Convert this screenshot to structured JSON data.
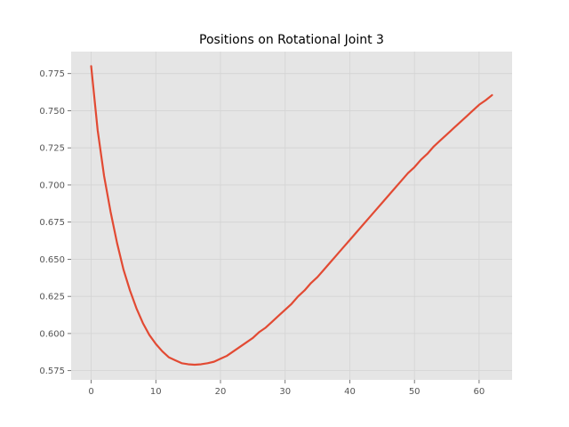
{
  "chart_data": {
    "type": "line",
    "title": "Positions on Rotational Joint 3",
    "xlabel": "",
    "ylabel": "",
    "xlim": [
      -3.1,
      65.1
    ],
    "ylim": [
      0.5688,
      0.7898
    ],
    "xticks": [
      0,
      10,
      20,
      30,
      40,
      50,
      60
    ],
    "yticks": [
      0.575,
      0.6,
      0.625,
      0.65,
      0.675,
      0.7,
      0.725,
      0.75,
      0.775
    ],
    "ytick_labels": [
      "0.575",
      "0.600",
      "0.625",
      "0.650",
      "0.675",
      "0.700",
      "0.725",
      "0.750",
      "0.775"
    ],
    "grid": true,
    "background": "#e5e5e5",
    "grid_color": "#d4d4d4",
    "series": [
      {
        "color": "#e24a33",
        "x": [
          0,
          1,
          2,
          3,
          4,
          5,
          6,
          7,
          8,
          9,
          10,
          11,
          12,
          13,
          14,
          15,
          16,
          17,
          18,
          19,
          20,
          21,
          22,
          23,
          24,
          25,
          26,
          27,
          28,
          29,
          30,
          31,
          32,
          33,
          34,
          35,
          36,
          37,
          38,
          39,
          40,
          41,
          42,
          43,
          44,
          45,
          46,
          47,
          48,
          49,
          50,
          51,
          52,
          53,
          54,
          55,
          56,
          57,
          58,
          59,
          60,
          61,
          62
        ],
        "values": [
          0.78,
          0.737,
          0.706,
          0.682,
          0.661,
          0.643,
          0.629,
          0.617,
          0.607,
          0.599,
          0.593,
          0.588,
          0.584,
          0.582,
          0.58,
          0.5793,
          0.579,
          0.5793,
          0.58,
          0.581,
          0.583,
          0.585,
          0.588,
          0.591,
          0.594,
          0.597,
          0.601,
          0.604,
          0.608,
          0.612,
          0.616,
          0.62,
          0.625,
          0.629,
          0.634,
          0.638,
          0.643,
          0.648,
          0.653,
          0.658,
          0.663,
          0.668,
          0.673,
          0.678,
          0.683,
          0.688,
          0.693,
          0.698,
          0.703,
          0.708,
          0.712,
          0.717,
          0.721,
          0.726,
          0.73,
          0.734,
          0.738,
          0.742,
          0.746,
          0.75,
          0.754,
          0.757,
          0.7605
        ]
      }
    ]
  }
}
